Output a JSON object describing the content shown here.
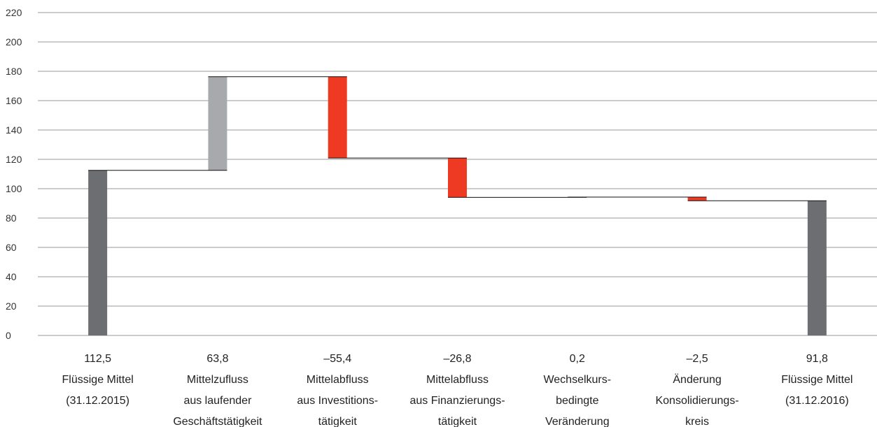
{
  "chart_data": {
    "type": "bar",
    "subtype": "waterfall",
    "ylim": [
      0,
      220
    ],
    "yticks": [
      "0",
      "20",
      "40",
      "60",
      "80",
      "100",
      "120",
      "140",
      "160",
      "180",
      "200",
      "220"
    ],
    "grid": true,
    "colors": {
      "total": "#6d6e71",
      "increase": "#a7a9ac",
      "decrease": "#ee3a23",
      "grid": "#9a9a9a",
      "connector": "#111111"
    },
    "categories": [
      {
        "value_label": "112,5",
        "lines": [
          "Flüssige Mittel",
          "(31.12.2015)"
        ],
        "kind": "total",
        "start": 0,
        "end": 112.5
      },
      {
        "value_label": "63,8",
        "lines": [
          "Mittelzufluss",
          "aus laufender",
          "Geschäftstätigkeit"
        ],
        "kind": "increase",
        "start": 112.5,
        "end": 176.3
      },
      {
        "value_label": "–55,4",
        "lines": [
          "Mittelabfluss",
          "aus Investitions-",
          "tätigkeit"
        ],
        "kind": "decrease",
        "start": 176.3,
        "end": 120.9
      },
      {
        "value_label": "–26,8",
        "lines": [
          "Mittelabfluss",
          "aus Finanzierungs-",
          "tätigkeit"
        ],
        "kind": "decrease",
        "start": 120.9,
        "end": 94.1
      },
      {
        "value_label": "0,2",
        "lines": [
          "Wechselkurs-",
          "bedingte",
          "Veränderung"
        ],
        "kind": "increase",
        "start": 94.1,
        "end": 94.3
      },
      {
        "value_label": "–2,5",
        "lines": [
          "Änderung",
          "Konsolidierungs-",
          "kreis"
        ],
        "kind": "decrease",
        "start": 94.3,
        "end": 91.8
      },
      {
        "value_label": "91,8",
        "lines": [
          "Flüssige Mittel",
          "(31.12.2016)"
        ],
        "kind": "total",
        "start": 0,
        "end": 91.8
      }
    ]
  }
}
